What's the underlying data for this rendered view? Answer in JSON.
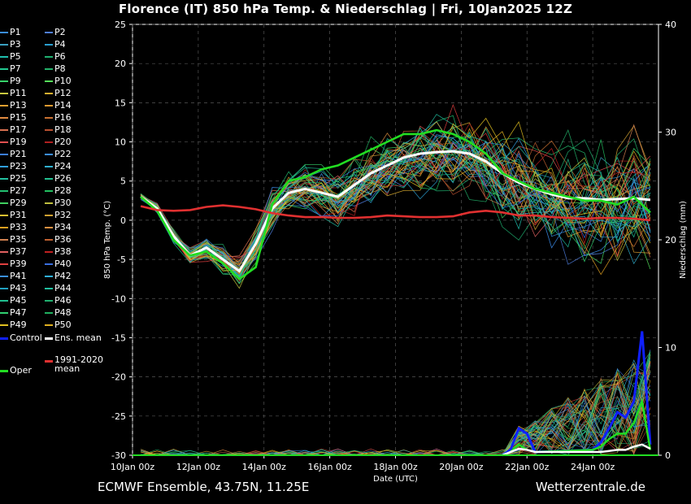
{
  "title": "Florence  (IT)  850 hPa Temp. & Niederschlag | Fri, 10Jan2025 12Z",
  "footer": {
    "left": "ECMWF Ensemble, 43.75N, 11.25E",
    "right": "Wetterzentrale.de"
  },
  "chart_data": {
    "type": "line",
    "xlabel": "Date (UTC)",
    "ylabel": "850 hPa Temp. (°C)",
    "y2label": "Niederschlag (mm)",
    "ylim": [
      -30,
      25
    ],
    "y2lim": [
      0,
      40
    ],
    "xlim": [
      0,
      16
    ],
    "x_unit": "days since 10Jan 00z",
    "yticks": [
      -30,
      -25,
      -20,
      -15,
      -10,
      -5,
      0,
      5,
      10,
      15,
      20,
      25
    ],
    "y2ticks": [
      0,
      10,
      20,
      30,
      40
    ],
    "xtick_labels": [
      "10Jan 00z",
      "12Jan 00z",
      "14Jan 00z",
      "16Jan 00z",
      "18Jan 00z",
      "20Jan 00z",
      "22Jan 00z",
      "24Jan 00z"
    ],
    "grid": true,
    "legend_position": "left",
    "members": [
      "P1",
      "P2",
      "P3",
      "P4",
      "P5",
      "P6",
      "P7",
      "P8",
      "P9",
      "P10",
      "P11",
      "P12",
      "P13",
      "P14",
      "P15",
      "P16",
      "P17",
      "P18",
      "P19",
      "P20",
      "P21",
      "P22",
      "P23",
      "P24",
      "P25",
      "P26",
      "P27",
      "P28",
      "P29",
      "P30",
      "P31",
      "P32",
      "P33",
      "P34",
      "P35",
      "P36",
      "P37",
      "P38",
      "P39",
      "P40",
      "P41",
      "P42",
      "P43",
      "P44",
      "P45",
      "P46",
      "P47",
      "P48",
      "P49",
      "P50"
    ],
    "member_colors": [
      "#3a8de0",
      "#4f7fe0",
      "#3aa0c0",
      "#2a9fd0",
      "#1fbfae",
      "#1fb070",
      "#22c890",
      "#23b26a",
      "#36d36a",
      "#55e05a",
      "#c8c840",
      "#e0b030",
      "#e0a030",
      "#e09a30",
      "#e08a40",
      "#c87030",
      "#d87050",
      "#b85030",
      "#e05050",
      "#b02020",
      "#3c7fe0",
      "#3c8ff0",
      "#30a0e0",
      "#30b0d0",
      "#22c0a0",
      "#22c090",
      "#22c070",
      "#22c060",
      "#40d060",
      "#c0c040",
      "#e0c030",
      "#d0a030",
      "#e0a020",
      "#e09040",
      "#d08050",
      "#c06030",
      "#e06060",
      "#c02020",
      "#e04040",
      "#3a6fe0",
      "#3a90e0",
      "#30b0e0",
      "#20a0c0",
      "#20c0a0",
      "#20c090",
      "#20b070",
      "#30d070",
      "#20b060",
      "#e0c020",
      "#e0b020"
    ],
    "special_legend": [
      {
        "name": "Control",
        "color": "#1020ff"
      },
      {
        "name": "Ens. mean",
        "color": "#ffffff"
      },
      {
        "name": "Oper",
        "color": "#22dd22"
      },
      {
        "name": "1991-2020 mean",
        "color": "#e03030"
      }
    ],
    "series": [
      {
        "name": "Ens. mean",
        "x": [
          0.25,
          0.75,
          1.25,
          1.75,
          2.25,
          2.75,
          3.25,
          3.75,
          4.25,
          4.75,
          5.25,
          5.75,
          6.25,
          6.75,
          7.25,
          7.75,
          8.25,
          8.75,
          9.25,
          9.75,
          10.25,
          10.75,
          11.25,
          11.75,
          12.25,
          12.75,
          13.25,
          13.75,
          14.25,
          14.75,
          15.25,
          15.75
        ],
        "y": [
          3.0,
          1.5,
          -2.0,
          -4.5,
          -3.5,
          -5.0,
          -6.5,
          -3.0,
          1.5,
          3.5,
          4.0,
          3.5,
          3.0,
          4.5,
          6.0,
          7.0,
          8.0,
          8.5,
          8.7,
          8.8,
          8.5,
          7.5,
          6.0,
          4.8,
          4.0,
          3.3,
          2.8,
          2.8,
          2.6,
          2.7,
          2.8,
          2.6
        ]
      },
      {
        "name": "Oper",
        "x": [
          0.25,
          0.75,
          1.25,
          1.75,
          2.25,
          2.75,
          3.25,
          3.75,
          4.25,
          4.75,
          5.25,
          5.75,
          6.25,
          6.75,
          7.25,
          7.75,
          8.25,
          8.75,
          9.25,
          9.75,
          10.25,
          10.75,
          11.25,
          11.75,
          12.25,
          12.75,
          13.25,
          13.75,
          14.25,
          14.75,
          15.25,
          15.75
        ],
        "y": [
          3.0,
          1.2,
          -2.5,
          -4.5,
          -4.0,
          -5.5,
          -7.5,
          -6.0,
          2.0,
          5.0,
          5.5,
          6.5,
          7.0,
          8.0,
          9.0,
          10.0,
          11.0,
          11.0,
          11.5,
          11.0,
          10.0,
          8.5,
          6.0,
          5.0,
          4.0,
          3.5,
          3.0,
          2.5,
          2.5,
          2.0,
          3.0,
          1.0
        ]
      },
      {
        "name": "1991-2020 mean",
        "x": [
          0.25,
          0.75,
          1.25,
          1.75,
          2.25,
          2.75,
          3.25,
          3.75,
          4.25,
          4.75,
          5.25,
          5.75,
          6.25,
          6.75,
          7.25,
          7.75,
          8.25,
          8.75,
          9.25,
          9.75,
          10.25,
          10.75,
          11.25,
          11.75,
          12.25,
          12.75,
          13.25,
          13.75,
          14.25,
          14.75,
          15.25,
          15.75
        ],
        "y": [
          1.8,
          1.3,
          1.2,
          1.3,
          1.7,
          1.9,
          1.7,
          1.4,
          0.9,
          0.6,
          0.4,
          0.4,
          0.3,
          0.3,
          0.4,
          0.6,
          0.5,
          0.4,
          0.4,
          0.5,
          1.0,
          1.2,
          1.0,
          0.6,
          0.6,
          0.4,
          0.3,
          0.2,
          0.3,
          0.3,
          0.2,
          0.0
        ]
      }
    ],
    "precip_series": [
      {
        "name": "Control",
        "x": [
          11.5,
          11.75,
          12.0,
          12.25,
          14.0,
          14.25,
          14.5,
          14.75,
          15.0,
          15.25,
          15.5,
          15.75
        ],
        "y": [
          0.5,
          2.5,
          2.0,
          0.3,
          0.5,
          1.2,
          2.5,
          4.0,
          3.5,
          5.0,
          11.5,
          1.0
        ]
      },
      {
        "name": "Oper",
        "x": [
          11.5,
          11.75,
          12.0,
          12.25,
          14.0,
          14.25,
          14.5,
          14.75,
          15.0,
          15.25,
          15.5,
          15.75
        ],
        "y": [
          0.3,
          1.0,
          0.5,
          0.3,
          0.5,
          0.8,
          1.5,
          2.0,
          2.0,
          3.0,
          5.0,
          0.5
        ]
      },
      {
        "name": "Ens. mean",
        "x": [
          11.5,
          11.75,
          12.0,
          12.25,
          14.0,
          14.25,
          14.5,
          14.75,
          15.0,
          15.25,
          15.5,
          15.75
        ],
        "y": [
          0.3,
          0.6,
          0.5,
          0.3,
          0.3,
          0.3,
          0.4,
          0.5,
          0.5,
          0.8,
          1.0,
          0.6
        ]
      }
    ]
  }
}
